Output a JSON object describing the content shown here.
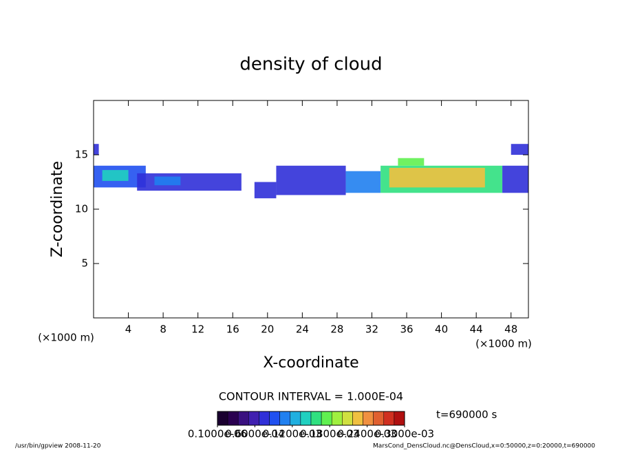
{
  "chart_data": {
    "type": "contour",
    "title": "density of cloud",
    "x_label": "X-coordinate",
    "y_label": "Z-coordinate",
    "x_unit": "(×1000 m)",
    "contour_interval": "CONTOUR INTERVAL = 1.000E-04",
    "time_label": "t=690000 s",
    "footer_left": "/usr/bin/gpview   2008-11-20",
    "footer_right": "MarsCond_DensCloud.nc@DensCloud,x=0:50000,z=0:20000,t=690000",
    "xlim": [
      0,
      50
    ],
    "ylim": [
      0,
      20
    ],
    "xticks": [
      4,
      8,
      12,
      16,
      20,
      24,
      28,
      32,
      36,
      40,
      44,
      48
    ],
    "yticks": [
      5,
      10,
      15
    ],
    "clim": [
      0,
      0.0003
    ],
    "cticks": [
      {
        "value": 0,
        "label": "0.1000e-06"
      },
      {
        "value": 6e-05,
        "label": "0.6000e-04"
      },
      {
        "value": 0.00012,
        "label": "0.1200e-03"
      },
      {
        "value": 0.00018,
        "label": "0.1800e-03"
      },
      {
        "value": 0.00024,
        "label": "0.2400e-03"
      },
      {
        "value": 0.0003,
        "label": "0.3000e-03"
      }
    ],
    "colors": [
      "#1a0030",
      "#2a0050",
      "#3a1080",
      "#4020b0",
      "#3030d8",
      "#2050f0",
      "#2080f0",
      "#20b0e0",
      "#20d0c0",
      "#30e080",
      "#60f050",
      "#a0f040",
      "#d0e040",
      "#f0c040",
      "#f09040",
      "#e06030",
      "#d03020",
      "#b01010"
    ],
    "patches": [
      {
        "x": [
          0,
          0.6
        ],
        "z": [
          15,
          16
        ],
        "value": 7e-05
      },
      {
        "x": [
          0,
          6
        ],
        "z": [
          12,
          14
        ],
        "value": 9e-05
      },
      {
        "x": [
          1,
          4
        ],
        "z": [
          12.6,
          13.6
        ],
        "value": 0.00014
      },
      {
        "x": [
          5,
          17
        ],
        "z": [
          11.7,
          13.3
        ],
        "value": 8e-05
      },
      {
        "x": [
          7,
          10
        ],
        "z": [
          12.2,
          13.0
        ],
        "value": 0.00011
      },
      {
        "x": [
          18.5,
          21
        ],
        "z": [
          11,
          12.5
        ],
        "value": 8e-05
      },
      {
        "x": [
          21,
          29
        ],
        "z": [
          11.3,
          14
        ],
        "value": 8e-05
      },
      {
        "x": [
          29,
          33
        ],
        "z": [
          11.5,
          13.5
        ],
        "value": 0.0001
      },
      {
        "x": [
          33,
          47
        ],
        "z": [
          11.5,
          14
        ],
        "value": 0.00016
      },
      {
        "x": [
          34,
          45
        ],
        "z": [
          12,
          13.8
        ],
        "value": 0.00022
      },
      {
        "x": [
          35,
          38
        ],
        "z": [
          14,
          14.7
        ],
        "value": 0.00018
      },
      {
        "x": [
          47,
          50
        ],
        "z": [
          11.5,
          14
        ],
        "value": 8e-05
      },
      {
        "x": [
          48,
          50
        ],
        "z": [
          15,
          16
        ],
        "value": 7e-05
      }
    ]
  }
}
